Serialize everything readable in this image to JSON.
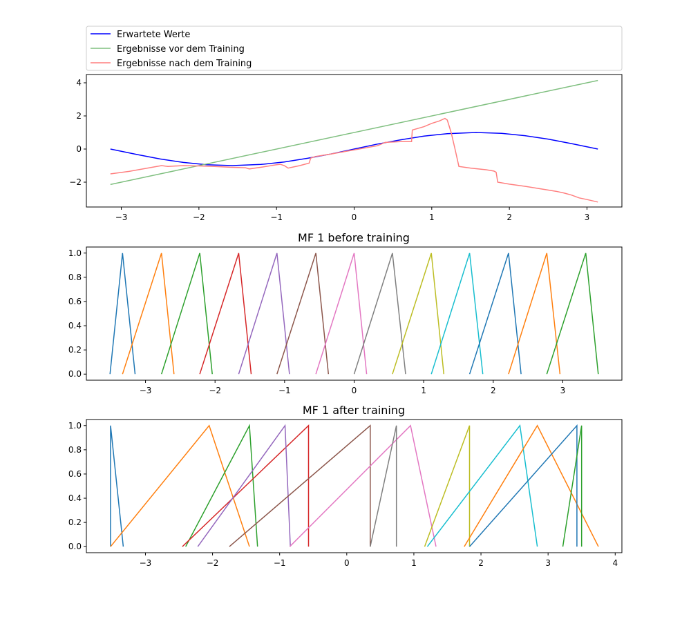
{
  "chart_data": [
    {
      "type": "line",
      "title": "",
      "xlabel": "",
      "ylabel": "",
      "xlim": [
        -3.45,
        3.45
      ],
      "ylim": [
        -3.5,
        4.5
      ],
      "xticks": [
        -3,
        -2,
        -1,
        0,
        1,
        2,
        3
      ],
      "yticks": [
        -2,
        0,
        2,
        4
      ],
      "legend": {
        "position": "above",
        "entries": [
          "Erwartete Werte",
          "Ergebnisse vor dem Training",
          "Ergebnisse nach dem Training"
        ]
      },
      "series": [
        {
          "name": "Erwartete Werte",
          "color": "#0000ff",
          "x": [
            -3.14,
            -2.8,
            -2.5,
            -2.2,
            -1.9,
            -1.57,
            -1.2,
            -0.9,
            -0.6,
            -0.3,
            0,
            0.3,
            0.6,
            0.9,
            1.2,
            1.57,
            1.9,
            2.2,
            2.5,
            2.8,
            3.14
          ],
          "y": [
            0,
            -0.33,
            -0.6,
            -0.81,
            -0.95,
            -1.0,
            -0.93,
            -0.78,
            -0.56,
            -0.3,
            0,
            0.3,
            0.56,
            0.78,
            0.93,
            1.0,
            0.95,
            0.81,
            0.6,
            0.33,
            0
          ]
        },
        {
          "name": "Ergebnisse vor dem Training",
          "color": "#7fbf7f",
          "x": [
            -3.14,
            3.14
          ],
          "y": [
            -2.14,
            4.14
          ]
        },
        {
          "name": "Ergebnisse nach dem Training",
          "color": "#ff7f7f",
          "x": [
            -3.14,
            -2.9,
            -2.6,
            -2.48,
            -2.4,
            -2.2,
            -2.0,
            -1.8,
            -1.6,
            -1.4,
            -1.35,
            -1.2,
            -1.0,
            -0.95,
            -0.9,
            -0.85,
            -0.7,
            -0.58,
            -0.56,
            -0.5,
            -0.3,
            0,
            0.3,
            0.4,
            0.6,
            0.74,
            0.75,
            0.9,
            1.0,
            1.1,
            1.17,
            1.2,
            1.25,
            1.3,
            1.35,
            1.5,
            1.7,
            1.8,
            1.83,
            1.85,
            2.0,
            2.2,
            2.4,
            2.6,
            2.7,
            2.8,
            2.9,
            3.0,
            3.14
          ],
          "y": [
            -1.5,
            -1.35,
            -1.1,
            -1.0,
            -1.05,
            -1.0,
            -1.02,
            -1.05,
            -1.1,
            -1.13,
            -1.2,
            -1.1,
            -0.95,
            -0.92,
            -1.0,
            -1.15,
            -1.0,
            -0.85,
            -0.55,
            -0.45,
            -0.3,
            -0.05,
            0.2,
            0.4,
            0.45,
            0.45,
            1.15,
            1.35,
            1.55,
            1.7,
            1.85,
            1.75,
            1.0,
            0.0,
            -1.05,
            -1.15,
            -1.25,
            -1.33,
            -1.4,
            -2.0,
            -2.12,
            -2.25,
            -2.4,
            -2.55,
            -2.65,
            -2.78,
            -2.95,
            -3.05,
            -3.2
          ]
        }
      ]
    },
    {
      "type": "line",
      "title": "MF 1 before training",
      "xlabel": "",
      "ylabel": "",
      "xlim": [
        -3.85,
        3.85
      ],
      "ylim": [
        -0.05,
        1.05
      ],
      "xticks": [
        -3,
        -2,
        -1,
        0,
        1,
        2,
        3
      ],
      "yticks": [
        0.0,
        0.2,
        0.4,
        0.6,
        0.8,
        1.0
      ],
      "triangles": [
        {
          "a": -3.51,
          "b": -3.33,
          "c": -3.15,
          "color": "#1f77b4"
        },
        {
          "a": -3.33,
          "b": -2.77,
          "c": -2.59,
          "color": "#ff7f0e"
        },
        {
          "a": -2.77,
          "b": -2.22,
          "c": -2.04,
          "color": "#2ca02c"
        },
        {
          "a": -2.22,
          "b": -1.66,
          "c": -1.48,
          "color": "#d62728"
        },
        {
          "a": -1.66,
          "b": -1.11,
          "c": -0.93,
          "color": "#9467bd"
        },
        {
          "a": -1.11,
          "b": -0.55,
          "c": -0.37,
          "color": "#8c564b"
        },
        {
          "a": -0.55,
          "b": 0.0,
          "c": 0.18,
          "color": "#e377c2"
        },
        {
          "a": 0.0,
          "b": 0.55,
          "c": 0.74,
          "color": "#7f7f7f"
        },
        {
          "a": 0.55,
          "b": 1.11,
          "c": 1.29,
          "color": "#bcbd22"
        },
        {
          "a": 1.11,
          "b": 1.66,
          "c": 1.85,
          "color": "#17becf"
        },
        {
          "a": 1.66,
          "b": 2.22,
          "c": 2.4,
          "color": "#1f77b4"
        },
        {
          "a": 2.22,
          "b": 2.77,
          "c": 2.96,
          "color": "#ff7f0e"
        },
        {
          "a": 2.77,
          "b": 3.33,
          "c": 3.51,
          "color": "#2ca02c"
        }
      ]
    },
    {
      "type": "line",
      "title": "MF 1 after training",
      "xlabel": "",
      "ylabel": "",
      "xlim": [
        -3.88,
        4.1
      ],
      "ylim": [
        -0.05,
        1.05
      ],
      "xticks": [
        -3,
        -2,
        -1,
        0,
        1,
        2,
        3,
        4
      ],
      "yticks": [
        0.0,
        0.2,
        0.4,
        0.6,
        0.8,
        1.0
      ],
      "triangles": [
        {
          "a": -3.52,
          "b": -3.52,
          "c": -3.33,
          "color": "#1f77b4"
        },
        {
          "a": -3.52,
          "b": -2.05,
          "c": -1.45,
          "color": "#ff7f0e"
        },
        {
          "a": -2.4,
          "b": -1.45,
          "c": -1.33,
          "color": "#2ca02c"
        },
        {
          "a": -2.45,
          "b": -0.57,
          "c": -0.57,
          "color": "#d62728"
        },
        {
          "a": -2.22,
          "b": -0.92,
          "c": -0.84,
          "color": "#9467bd"
        },
        {
          "a": -1.75,
          "b": 0.35,
          "c": 0.35,
          "color": "#8c564b"
        },
        {
          "a": -0.85,
          "b": 0.95,
          "c": 1.33,
          "color": "#e377c2"
        },
        {
          "a": 0.35,
          "b": 0.74,
          "c": 0.74,
          "color": "#7f7f7f"
        },
        {
          "a": 1.16,
          "b": 1.83,
          "c": 1.83,
          "color": "#bcbd22"
        },
        {
          "a": 1.2,
          "b": 2.58,
          "c": 2.84,
          "color": "#17becf"
        },
        {
          "a": 1.75,
          "b": 2.84,
          "c": 3.75,
          "color": "#ff7f0e"
        },
        {
          "a": 1.83,
          "b": 3.43,
          "c": 3.43,
          "color": "#1f77b4"
        },
        {
          "a": 3.22,
          "b": 3.5,
          "c": 3.5,
          "color": "#2ca02c"
        }
      ]
    }
  ]
}
